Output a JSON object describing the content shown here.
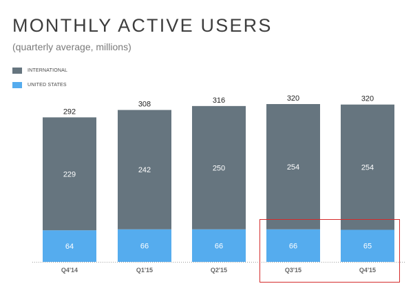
{
  "chart_data": {
    "type": "bar",
    "stacked": true,
    "title": "MONTHLY ACTIVE USERS",
    "subtitle": "(quarterly average, millions)",
    "categories": [
      "Q4'14",
      "Q1'15",
      "Q2'15",
      "Q3'15",
      "Q4'15"
    ],
    "series": [
      {
        "name": "UNITED STATES",
        "values": [
          64,
          66,
          66,
          66,
          65
        ],
        "color": "#55acee"
      },
      {
        "name": "INTERNATIONAL",
        "values": [
          229,
          242,
          250,
          254,
          254
        ],
        "color": "#66757f"
      }
    ],
    "totals": [
      292,
      308,
      316,
      320,
      320
    ],
    "ylim": [
      0,
      320
    ],
    "grid": false,
    "legend_position": "top-left",
    "highlight": {
      "categories": [
        "Q3'15",
        "Q4'15"
      ],
      "color": "#d42a2a"
    }
  }
}
